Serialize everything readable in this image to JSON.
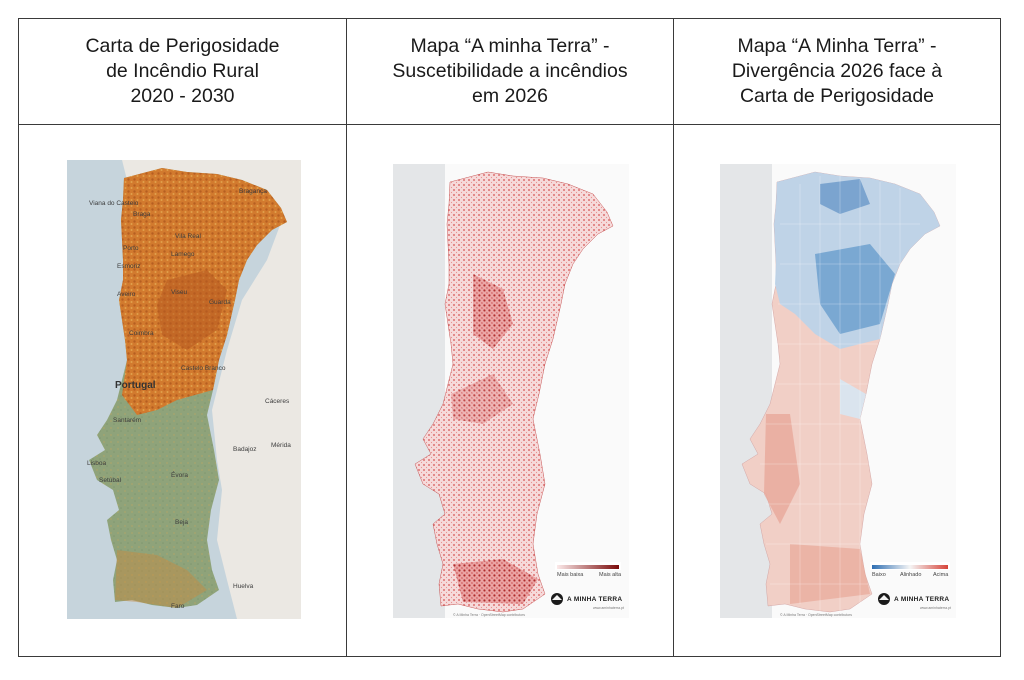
{
  "panels": [
    {
      "title": "Carta de Perigosidade\nde Incêndio Rural\n2020 - 2030",
      "labels": {
        "braganca": "Bragança",
        "viana": "Viana do Castelo",
        "braga": "Braga",
        "vila_real": "Vila Real",
        "porto": "Porto",
        "lamego": "Lamego",
        "esmoriz": "Esmoriz",
        "aveiro": "Aveiro",
        "viseu": "Viseu",
        "guarda": "Guarda",
        "coimbra": "Coimbra",
        "castelo_branco": "Castelo Branco",
        "portugal": "Portugal",
        "caceres": "Cáceres",
        "santarem": "Santarém",
        "merida": "Mérida",
        "lisboa": "Lisboa",
        "badajoz": "Badajoz",
        "setubal": "Setúbal",
        "evora": "Évora",
        "beja": "Beja",
        "huelva": "Huelva",
        "faro": "Faro"
      }
    },
    {
      "title": "Mapa “A minha Terra” -\nSuscetibilidade a incêndios\nem 2026",
      "legend": {
        "low": "Mais baixa",
        "high": "Mais alta",
        "colors": [
          "#fbe9e9",
          "#7a0a0a"
        ]
      },
      "brand": "A MINHA TERRA",
      "site": "www.aminhaterra.pt",
      "credits": "© A Minha Terra · OpenStreetMap contributors"
    },
    {
      "title": "Mapa “A Minha Terra” -\nDivergência 2026 face à\nCarta de Perigosidade",
      "legend": {
        "low": "Baixo",
        "mid": "Alinhado",
        "high": "Acima",
        "colors": [
          "#2f6fb3",
          "#f5f5f5",
          "#d6443a"
        ]
      },
      "brand": "A MINHA TERRA",
      "site": "www.aminhaterra.pt",
      "credits": "© A Minha Terra · OpenStreetMap contributors"
    }
  ],
  "colors": {
    "sea": "#c9d6dd",
    "land_bg": "#e9e6e1",
    "hazard_high": "#d9822b",
    "hazard_low": "#8fa37a"
  }
}
